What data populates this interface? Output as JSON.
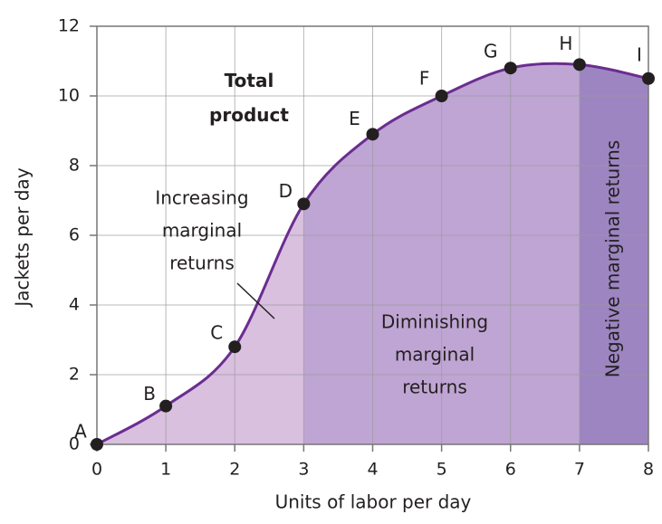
{
  "chart_data": {
    "type": "line",
    "x_label": "Units of labor per day",
    "y_label": "Jackets per day",
    "x": [
      0,
      1,
      2,
      3,
      4,
      5,
      6,
      7,
      8
    ],
    "point_labels": [
      "A",
      "B",
      "C",
      "D",
      "E",
      "F",
      "G",
      "H",
      "I"
    ],
    "series": [
      {
        "name": "Total product",
        "color": "#6b2d90",
        "values": [
          0,
          1.1,
          2.8,
          6.9,
          8.9,
          10,
          10.8,
          10.9,
          10.5
        ]
      }
    ],
    "xlim": [
      0,
      8
    ],
    "xticks": [
      0,
      1,
      2,
      3,
      4,
      5,
      6,
      7,
      8
    ],
    "ylim": [
      0,
      12
    ],
    "yticks": [
      0,
      2,
      4,
      6,
      8,
      10,
      12
    ],
    "grid": true,
    "regions": [
      {
        "from": 0,
        "to": 3,
        "color": "#d9c0df",
        "label": [
          "Increasing",
          "marginal",
          "returns"
        ]
      },
      {
        "from": 3,
        "to": 7,
        "color": "#bfa5d3",
        "label": [
          "Diminishing",
          "marginal",
          "returns"
        ]
      },
      {
        "from": 7,
        "to": 8,
        "color": "#9d85c1",
        "label": [
          "Negative marginal returns"
        ]
      }
    ]
  }
}
